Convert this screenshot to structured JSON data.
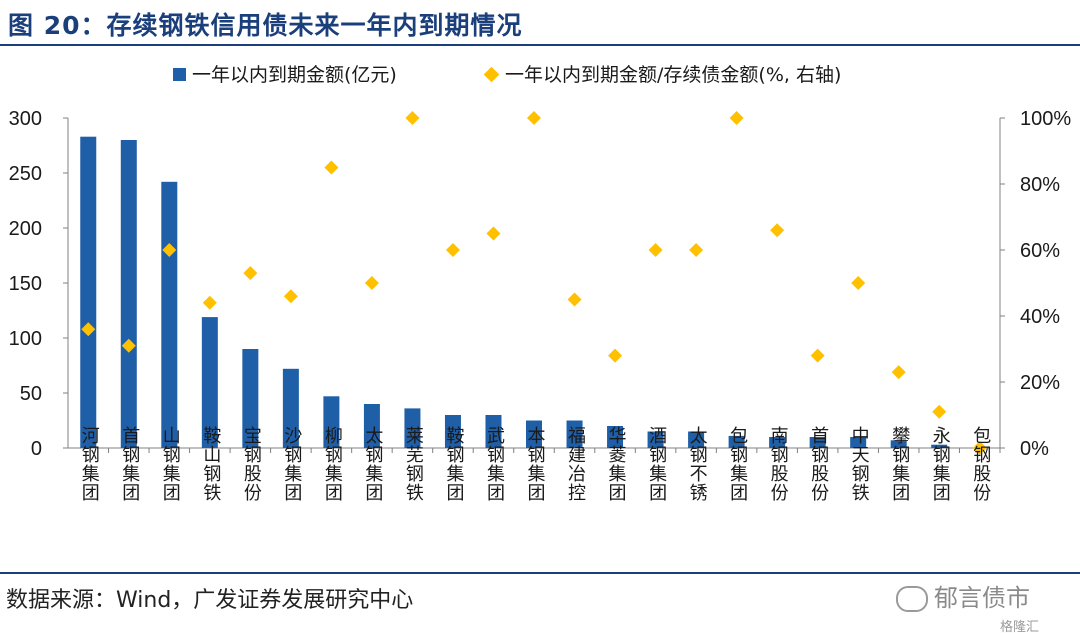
{
  "figure": {
    "title": "图 20：存续钢铁信用债未来一年内到期情况",
    "source": "数据来源：Wind，广发证券发展研究中心",
    "watermark": "郁言债市",
    "watermark2": "格隆汇"
  },
  "chart_data": {
    "type": "bar",
    "categories": [
      "河钢集团",
      "首钢集团",
      "山钢集团",
      "鞍山钢铁",
      "宝钢股份",
      "沙钢集团",
      "柳钢集团",
      "太钢集团",
      "莱芜钢铁",
      "鞍钢集团",
      "武钢集团",
      "本钢集团",
      "福建冶控",
      "华菱集团",
      "酒钢集团",
      "太钢不锈",
      "包钢集团",
      "南钢股份",
      "首钢股份",
      "中天钢铁",
      "攀钢集团",
      "永钢集团",
      "包钢股份"
    ],
    "series": [
      {
        "name": "一年以内到期金额(亿元)",
        "kind": "bar",
        "axis": "left",
        "color": "#1f5fa8",
        "values": [
          283,
          280,
          242,
          119,
          90,
          72,
          47,
          40,
          36,
          30,
          30,
          25,
          25,
          20,
          15,
          15,
          11,
          10,
          10,
          10,
          7,
          3,
          0
        ]
      },
      {
        "name": "一年以内到期金额/存续债金额(%, 右轴)",
        "kind": "scatter",
        "axis": "right",
        "color": "#ffc000",
        "values": [
          36,
          31,
          60,
          44,
          53,
          46,
          85,
          50,
          100,
          60,
          65,
          100,
          45,
          28,
          60,
          60,
          100,
          66,
          28,
          50,
          23,
          11,
          0
        ]
      }
    ],
    "left_axis": {
      "min": 0,
      "max": 300,
      "ticks": [
        "0",
        "50",
        "100",
        "150",
        "200",
        "250",
        "300"
      ]
    },
    "right_axis": {
      "min": 0,
      "max": 100,
      "ticks": [
        "0%",
        "20%",
        "40%",
        "60%",
        "80%",
        "100%"
      ]
    },
    "grid": false,
    "legend_position": "top"
  }
}
